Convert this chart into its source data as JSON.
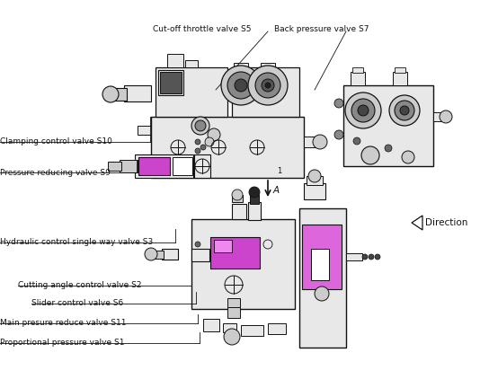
{
  "background_color": "#ffffff",
  "line_color": "#111111",
  "gray_light": "#e8e8e8",
  "gray_med": "#cccccc",
  "gray_dark": "#888888",
  "magenta": "#cc44cc",
  "magenta2": "#dd66dd",
  "labels": {
    "cut_off_throttle": "Cut-off throttle valve S5",
    "back_pressure": "Back pressure valve S7",
    "clamping_control": "Clamping control valve S10",
    "pressure_reducing": "Pressure reducing valve S9",
    "hydraulic_control": "Hydraulic control single way valve S3",
    "cutting_angle": "Cutting angle control valve S2",
    "slider_control": "Slider control valve S6",
    "main_pressure": "Main presure reduce valve S11",
    "proportional": "Proportional pressure valve S1",
    "direction": "Direction",
    "arrow_a": "A"
  },
  "figsize": [
    5.44,
    4.22
  ],
  "dpi": 100,
  "xlim": [
    0,
    544
  ],
  "ylim": [
    0,
    422
  ]
}
